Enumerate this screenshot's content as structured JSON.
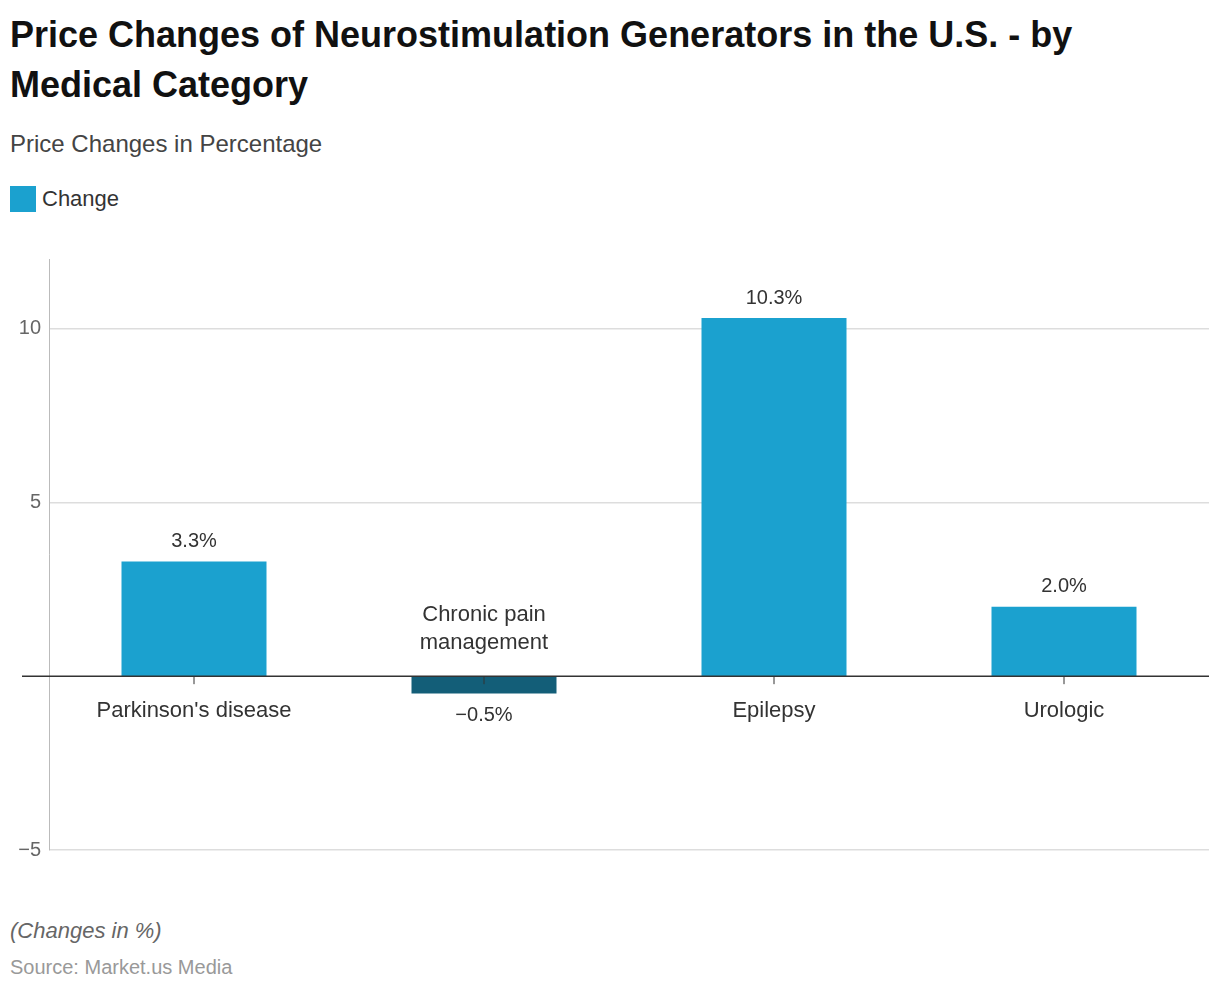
{
  "chart_data": {
    "type": "bar",
    "title": "Price Changes of Neurostimulation Generators in the U.S. - by Medical Category",
    "subtitle": "Price Changes in Percentage",
    "annotations": [
      "(Changes in %)"
    ],
    "source": "Source: Market.us Media",
    "categories": [
      "Parkinson's disease",
      "Chronic pain management",
      "Epilepsy",
      "Urologic"
    ],
    "series": [
      {
        "name": "Change",
        "color": "#1ba1cf",
        "colors": [
          "#1ba1cf",
          "#135e78",
          "#1ba1cf",
          "#1ba1cf"
        ],
        "values": [
          3.3,
          -0.5,
          10.3,
          2.0
        ],
        "value_labels": [
          "3.3%",
          "−0.5%",
          "10.3%",
          "2.0%"
        ]
      }
    ],
    "ylim": [
      -5,
      12
    ],
    "yticks": [
      {
        "value": -5,
        "label": "−5"
      },
      5,
      10
    ],
    "grid": true,
    "legend": "top-left",
    "data_labels": true
  }
}
